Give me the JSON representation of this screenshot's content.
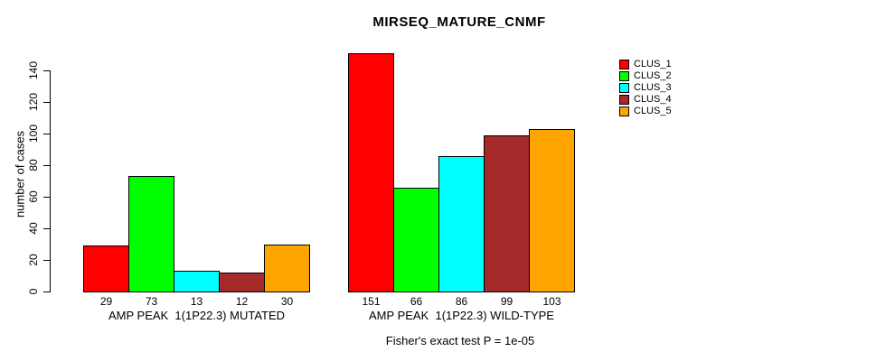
{
  "chart_data": {
    "type": "bar",
    "title": "MIRSEQ_MATURE_CNMF",
    "ylabel": "number of cases",
    "xlabel": "",
    "ylim": [
      0,
      155
    ],
    "yticks": [
      0,
      20,
      40,
      60,
      80,
      100,
      120,
      140
    ],
    "grid": false,
    "legend_position": "top-right",
    "bar_value_labels": true,
    "categories": [
      "AMP PEAK  1(1P22.3) MUTATED",
      "AMP PEAK  1(1P22.3) WILD-TYPE"
    ],
    "series": [
      {
        "name": "CLUS_1",
        "color": "#FF0000",
        "values": [
          29,
          151
        ]
      },
      {
        "name": "CLUS_2",
        "color": "#00FF00",
        "values": [
          73,
          66
        ]
      },
      {
        "name": "CLUS_3",
        "color": "#00FFFF",
        "values": [
          13,
          86
        ]
      },
      {
        "name": "CLUS_4",
        "color": "#A52A2A",
        "values": [
          12,
          99
        ]
      },
      {
        "name": "CLUS_5",
        "color": "#FFA500",
        "values": [
          30,
          103
        ]
      }
    ],
    "annotation": "Fisher's exact test P = 1e-05"
  }
}
